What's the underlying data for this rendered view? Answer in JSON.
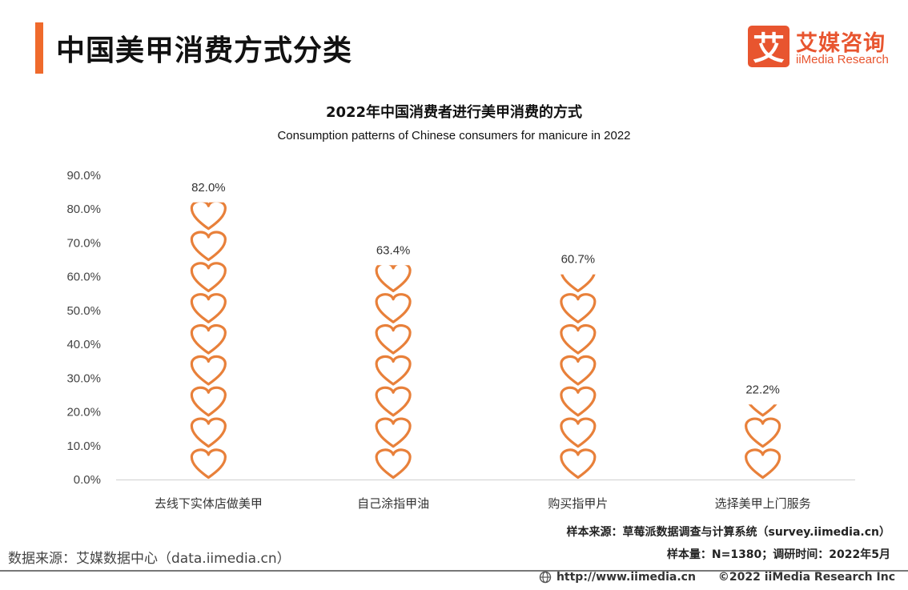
{
  "header": {
    "title": "中国美甲消费方式分类",
    "accent_color": "#ef6a2c"
  },
  "logo": {
    "icon_char": "艾",
    "name_cn": "艾媒咨询",
    "name_en": "iiMedia Research",
    "color": "#e8552f"
  },
  "chart_data": {
    "type": "bar",
    "title": "2022年中国消费者进行美甲消费的方式",
    "subtitle": "Consumption patterns of Chinese consumers for manicure in 2022",
    "categories": [
      "去线下实体店做美甲",
      "自己涂指甲油",
      "购买指甲片",
      "选择美甲上门服务"
    ],
    "values": [
      82.0,
      63.4,
      60.7,
      22.2
    ],
    "value_labels": [
      "82.0%",
      "63.4%",
      "60.7%",
      "22.2%"
    ],
    "y_ticks": [
      "0.0%",
      "10.0%",
      "20.0%",
      "30.0%",
      "40.0%",
      "50.0%",
      "60.0%",
      "70.0%",
      "80.0%",
      "90.0%"
    ],
    "ylim": [
      0,
      90
    ],
    "marker": "heart-icon",
    "marker_unit": 9.2,
    "bar_color": "#e8803a",
    "grid": false
  },
  "notes": {
    "source": "样本来源：草莓派数据调查与计算系统（survey.iimedia.cn）",
    "sample": "样本量：N=1380；调研时间：2022年5月"
  },
  "data_source": "数据来源：艾媒数据中心（data.iimedia.cn）",
  "footer": {
    "url": "http://www.iimedia.cn",
    "copyright": "©2022  iiMedia Research  Inc"
  }
}
